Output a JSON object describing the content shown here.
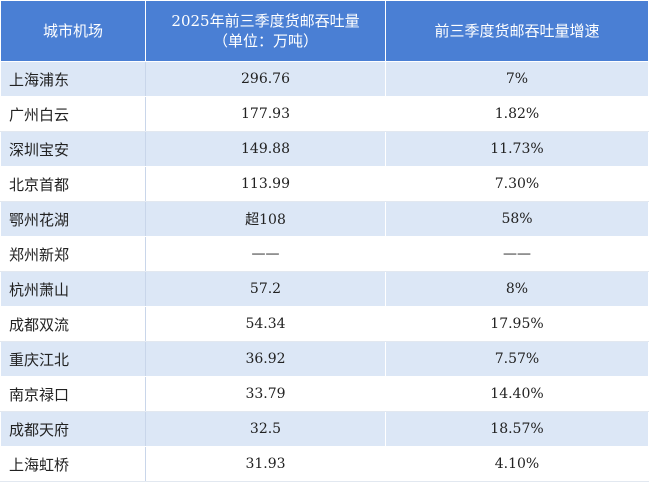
{
  "table": {
    "header": [
      "城市机场",
      [
        "2025年前三季度货邮吞吐量",
        "（单位：万吨）"
      ],
      "前三季度货邮吞吐量增速"
    ],
    "rows": [
      [
        "上海浦东",
        "296.76",
        "7%"
      ],
      [
        "广州白云",
        "177.93",
        "1.82%"
      ],
      [
        "深圳宝安",
        "149.88",
        "11.73%"
      ],
      [
        "北京首都",
        "113.99",
        "7.30%"
      ],
      [
        "鄂州花湖",
        "超108",
        "58%"
      ],
      [
        "郑州新郑",
        "——",
        "——"
      ],
      [
        "杭州萧山",
        "57.2",
        "8%"
      ],
      [
        "成都双流",
        "54.34",
        "17.95%"
      ],
      [
        "重庆江北",
        "36.92",
        "7.57%"
      ],
      [
        "南京禄口",
        "33.79",
        "14.40%"
      ],
      [
        "成都天府",
        "32.5",
        "18.57%"
      ],
      [
        "上海虹桥",
        "31.93",
        "4.10%"
      ]
    ]
  }
}
